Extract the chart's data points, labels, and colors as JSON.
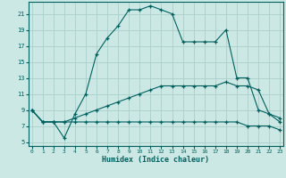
{
  "bg_color": "#cce8e4",
  "grid_color": "#aaceca",
  "line_color": "#006060",
  "xlabel": "Humidex (Indice chaleur)",
  "x_ticks": [
    0,
    1,
    2,
    3,
    4,
    5,
    6,
    7,
    8,
    9,
    10,
    11,
    12,
    13,
    14,
    15,
    16,
    17,
    18,
    19,
    20,
    21,
    22,
    23
  ],
  "y_ticks": [
    5,
    7,
    9,
    11,
    13,
    15,
    17,
    19,
    21
  ],
  "ylim": [
    4.5,
    22.5
  ],
  "xlim": [
    -0.3,
    23.3
  ],
  "line1": [
    9.0,
    7.5,
    7.5,
    5.5,
    8.5,
    11.0,
    16.0,
    18.0,
    19.5,
    21.5,
    21.5,
    22.0,
    21.5,
    21.0,
    17.5,
    17.5,
    17.5,
    17.5,
    19.0,
    13.0,
    13.0,
    9.0,
    8.5,
    8.0
  ],
  "line2": [
    9.0,
    7.5,
    7.5,
    7.5,
    8.0,
    8.5,
    9.0,
    9.5,
    10.0,
    10.5,
    11.0,
    11.5,
    12.0,
    12.0,
    12.0,
    12.0,
    12.0,
    12.0,
    12.5,
    12.0,
    12.0,
    11.5,
    8.5,
    7.5
  ],
  "line3": [
    9.0,
    7.5,
    7.5,
    7.5,
    7.5,
    7.5,
    7.5,
    7.5,
    7.5,
    7.5,
    7.5,
    7.5,
    7.5,
    7.5,
    7.5,
    7.5,
    7.5,
    7.5,
    7.5,
    7.5,
    7.0,
    7.0,
    7.0,
    6.5
  ]
}
